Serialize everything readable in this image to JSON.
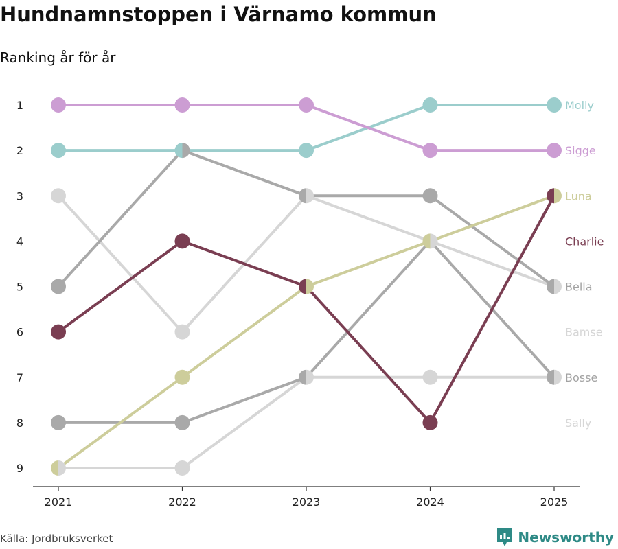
{
  "title": "Hundnamnstoppen i Värnamo kommun",
  "subtitle": "Ranking år för år",
  "source": "Källa: Jordbruksverket",
  "brand": "Newsworthy",
  "chart_data": {
    "type": "line",
    "x": [
      2021,
      2022,
      2023,
      2024,
      2025
    ],
    "ylim": [
      1,
      9
    ],
    "y_inverted": true,
    "y_ticks": [
      1,
      2,
      3,
      4,
      5,
      6,
      7,
      8,
      9
    ],
    "series": [
      {
        "name": "Molly",
        "values": [
          2,
          2,
          2,
          1,
          1
        ],
        "color": "#9bcdcc",
        "label_color": "#9bcdcc"
      },
      {
        "name": "Sigge",
        "values": [
          1,
          1,
          1,
          2,
          2
        ],
        "color": "#cc9dd3",
        "label_color": "#cc9dd3"
      },
      {
        "name": "Luna",
        "values": [
          9,
          7,
          5,
          4,
          3
        ],
        "color": "#cdcd9b",
        "label_color": "#cdcd9b"
      },
      {
        "name": "Charlie",
        "values": [
          6,
          4,
          5,
          8,
          3
        ],
        "color": "#7a3e52",
        "label_color": "#7a3e52"
      },
      {
        "name": "Bella",
        "values": [
          5,
          2,
          3,
          3,
          5
        ],
        "color": "#a9a9a9",
        "label_color": "#a2a2a2"
      },
      {
        "name": "Bamse",
        "values": [
          3,
          6,
          3,
          4,
          5
        ],
        "color": "#d6d6d6",
        "label_color": "#d6d6d6"
      },
      {
        "name": "Bosse",
        "values": [
          8,
          8,
          7,
          4,
          7
        ],
        "color": "#a9a9a9",
        "label_color": "#a2a2a2"
      },
      {
        "name": "Sally",
        "values": [
          9,
          9,
          7,
          7,
          7
        ],
        "color": "#d6d6d6",
        "label_color": "#d6d6d6"
      }
    ],
    "end_labels": [
      {
        "text": "Molly",
        "rank": 1,
        "color": "#9bcdcc"
      },
      {
        "text": "Sigge",
        "rank": 2,
        "color": "#cc9dd3"
      },
      {
        "text": "Luna",
        "rank": 3,
        "color": "#cdcd9b"
      },
      {
        "text": "Charlie",
        "rank": 4,
        "color": "#7a3e52"
      },
      {
        "text": "Bella",
        "rank": 5,
        "color": "#a2a2a2"
      },
      {
        "text": "Bamse",
        "rank": 6,
        "color": "#d6d6d6"
      },
      {
        "text": "Bosse",
        "rank": 7,
        "color": "#a2a2a2"
      },
      {
        "text": "Sally",
        "rank": 8,
        "color": "#d6d6d6"
      }
    ]
  }
}
